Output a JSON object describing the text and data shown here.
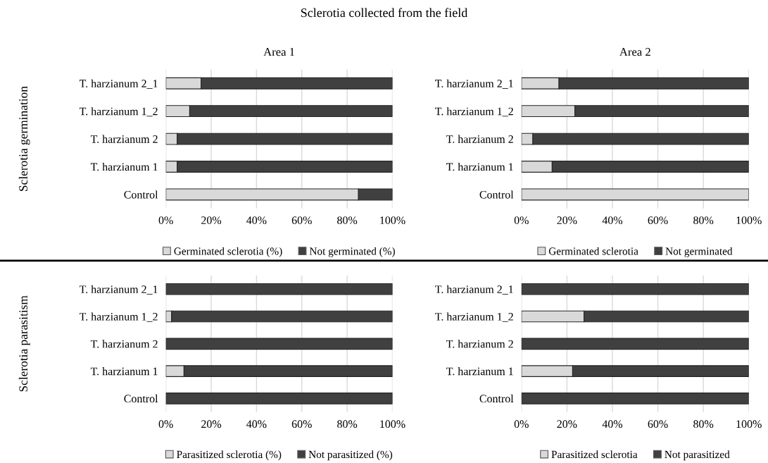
{
  "chart_data": [
    {
      "type": "bar",
      "orientation": "horizontal",
      "stacked": true,
      "title": "Area 1",
      "ylabel": "Sclerotia germination",
      "annotations": [
        "Sclerotia collected from the field"
      ],
      "categories": [
        "T. harzianum 2_1",
        "T. harzianum 1_2",
        "T. harzianum 2",
        "T. harzianum 1",
        "Control"
      ],
      "series": [
        {
          "name": "Germinated sclerotia (%)",
          "color": "#d9d9d9",
          "values": [
            15.5,
            10.5,
            5,
            5,
            85
          ]
        },
        {
          "name": "Not germinated (%)",
          "color": "#404040",
          "values": [
            84.5,
            89.5,
            95,
            95,
            15
          ]
        }
      ],
      "xlim": [
        0,
        100
      ],
      "xticks": [
        {
          "value": 0,
          "label": "0%"
        },
        {
          "value": 20,
          "label": "20%"
        },
        {
          "value": 40,
          "label": "40%"
        },
        {
          "value": 60,
          "label": "60%"
        },
        {
          "value": 80,
          "label": "80%"
        },
        {
          "value": 100,
          "label": "100%"
        }
      ],
      "grid": "x",
      "legend": "bottom"
    },
    {
      "type": "bar",
      "orientation": "horizontal",
      "stacked": true,
      "title": "Area 2",
      "categories": [
        "T. harzianum 2_1",
        "T. harzianum 1_2",
        "T. harzianum 2",
        "T. harzianum 1",
        "Control"
      ],
      "series": [
        {
          "name": "Germinated sclerotia",
          "color": "#d9d9d9",
          "values": [
            16.5,
            23.5,
            5,
            13.5,
            100
          ]
        },
        {
          "name": "Not germinated",
          "color": "#404040",
          "values": [
            83.5,
            76.5,
            95,
            86.5,
            0
          ]
        }
      ],
      "xlim": [
        0,
        100
      ],
      "xticks": [
        {
          "value": 0,
          "label": "0%"
        },
        {
          "value": 20,
          "label": "20%"
        },
        {
          "value": 40,
          "label": "40%"
        },
        {
          "value": 60,
          "label": "60%"
        },
        {
          "value": 80,
          "label": "80%"
        },
        {
          "value": 100,
          "label": "100%"
        }
      ],
      "grid": "x",
      "legend": "bottom"
    },
    {
      "type": "bar",
      "orientation": "horizontal",
      "stacked": true,
      "ylabel": "Sclerotia parasitism",
      "categories": [
        "T. harzianum 2_1",
        "T. harzianum 1_2",
        "T. harzianum 2",
        "T. harzianum 1",
        "Control"
      ],
      "series": [
        {
          "name": "Parasitized sclerotia (%)",
          "color": "#d9d9d9",
          "values": [
            0,
            2.5,
            0,
            8,
            0
          ]
        },
        {
          "name": "Not parasitized (%)",
          "color": "#404040",
          "values": [
            100,
            97.5,
            100,
            92,
            100
          ]
        }
      ],
      "xlim": [
        0,
        100
      ],
      "xticks": [
        {
          "value": 0,
          "label": "0%"
        },
        {
          "value": 20,
          "label": "20%"
        },
        {
          "value": 40,
          "label": "40%"
        },
        {
          "value": 60,
          "label": "60%"
        },
        {
          "value": 80,
          "label": "80%"
        },
        {
          "value": 100,
          "label": "100%"
        }
      ],
      "grid": "x",
      "legend": "bottom"
    },
    {
      "type": "bar",
      "orientation": "horizontal",
      "stacked": true,
      "categories": [
        "T. harzianum 2_1",
        "T. harzianum 1_2",
        "T. harzianum 2",
        "T. harzianum 1",
        "Control"
      ],
      "series": [
        {
          "name": "Parasitized sclerotia",
          "color": "#d9d9d9",
          "values": [
            0,
            27.5,
            0,
            22.5,
            0
          ]
        },
        {
          "name": "Not parasitized",
          "color": "#404040",
          "values": [
            100,
            72.5,
            100,
            77.5,
            100
          ]
        }
      ],
      "xlim": [
        0,
        100
      ],
      "xticks": [
        {
          "value": 0,
          "label": "0%"
        },
        {
          "value": 20,
          "label": "20%"
        },
        {
          "value": 40,
          "label": "40%"
        },
        {
          "value": 60,
          "label": "60%"
        },
        {
          "value": 80,
          "label": "80%"
        },
        {
          "value": 100,
          "label": "100%"
        }
      ],
      "grid": "x",
      "legend": "bottom"
    }
  ]
}
